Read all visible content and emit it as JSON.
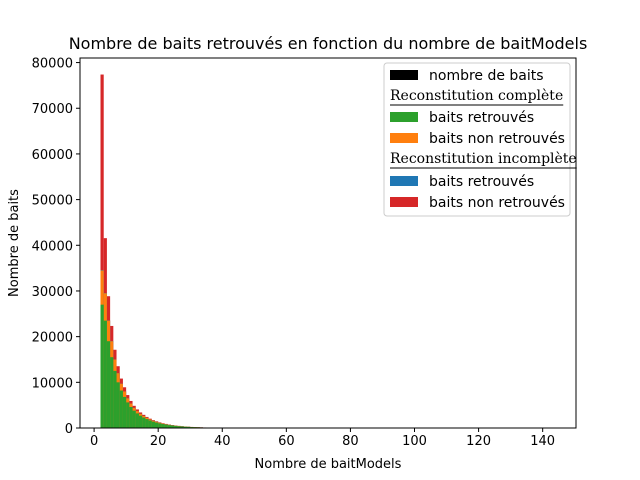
{
  "chart_data": {
    "type": "bar",
    "title": "Nombre de baits retrouvés en fonction du nombre de baitModels",
    "xlabel": "Nombre de baitModels",
    "ylabel": "Nombre de baits",
    "xlim": [
      -4.4,
      150.4
    ],
    "ylim": [
      0,
      81000
    ],
    "x_ticks": [
      0,
      20,
      40,
      60,
      80,
      100,
      120,
      140
    ],
    "y_ticks": [
      0,
      10000,
      20000,
      30000,
      40000,
      50000,
      60000,
      70000,
      80000
    ],
    "x_tick_labels": [
      "0",
      "20",
      "40",
      "60",
      "80",
      "100",
      "120",
      "140"
    ],
    "y_tick_labels": [
      "0",
      "10000",
      "20000",
      "30000",
      "40000",
      "50000",
      "60000",
      "70000",
      "80000"
    ],
    "bin_width": 1,
    "stacking": "cumulative, each layer drawn from 0 behind later layers",
    "x": [
      2,
      3,
      4,
      5,
      6,
      7,
      8,
      9,
      10,
      11,
      12,
      13,
      14,
      15,
      16,
      17,
      18,
      19,
      20,
      21,
      22,
      23,
      24,
      25,
      26,
      27,
      28,
      29,
      30,
      31,
      32,
      33,
      34,
      35,
      36,
      37,
      38,
      39,
      40,
      41,
      42,
      43
    ],
    "series": [
      {
        "name": "baits retrouvés",
        "group": "Reconstitution complète",
        "color": "#2ca02c",
        "values": [
          27000,
          23500,
          19000,
          15500,
          12500,
          10000,
          8200,
          6800,
          5600,
          4600,
          3800,
          3200,
          2700,
          2300,
          1950,
          1650,
          1400,
          1200,
          1020,
          870,
          740,
          630,
          540,
          460,
          390,
          330,
          280,
          240,
          200,
          170,
          145,
          120,
          100,
          85,
          70,
          60,
          50,
          42,
          35,
          28,
          22,
          16
        ]
      },
      {
        "name": "baits non retrouvés",
        "group": "Reconstitution complète",
        "color": "#ff7f0e",
        "values": [
          7500,
          6000,
          4500,
          3500,
          2500,
          2000,
          1500,
          1200,
          900,
          750,
          600,
          500,
          400,
          330,
          270,
          220,
          180,
          150,
          120,
          100,
          85,
          70,
          58,
          48,
          40,
          33,
          27,
          22,
          18,
          15,
          12,
          10,
          8,
          7,
          6,
          5,
          4,
          3,
          3,
          2,
          2,
          1
        ]
      },
      {
        "name": "baits retrouvés",
        "group": "Reconstitution incomplète",
        "color": "#1f77b4",
        "values": [
          80,
          60,
          50,
          40,
          30,
          25,
          20,
          15,
          12,
          10,
          8,
          6,
          5,
          4,
          3,
          3,
          2,
          2,
          2,
          1,
          1,
          1,
          1,
          1,
          1,
          0,
          0,
          0,
          0,
          0,
          0,
          0,
          0,
          0,
          0,
          0,
          0,
          0,
          0,
          0,
          0,
          0
        ]
      },
      {
        "name": "baits non retrouvés",
        "group": "Reconstitution incomplète",
        "color": "#d62728",
        "values": [
          42800,
          12000,
          5300,
          3300,
          2100,
          1500,
          1100,
          900,
          700,
          560,
          450,
          360,
          300,
          250,
          200,
          170,
          140,
          120,
          100,
          80,
          70,
          60,
          50,
          40,
          35,
          30,
          25,
          20,
          17,
          14,
          12,
          10,
          8,
          7,
          6,
          5,
          4,
          3,
          3,
          2,
          2,
          2
        ]
      }
    ],
    "legend": {
      "placement": "top-right",
      "entries": [
        {
          "kind": "swatch",
          "label": "nombre de baits",
          "color": "#000000"
        },
        {
          "kind": "header",
          "label": "Reconstitution  complète"
        },
        {
          "kind": "swatch",
          "label": "baits retrouvés",
          "color": "#2ca02c"
        },
        {
          "kind": "swatch",
          "label": "baits non retrouvés",
          "color": "#ff7f0e"
        },
        {
          "kind": "header",
          "label": "Reconstitution  incomplète"
        },
        {
          "kind": "swatch",
          "label": "baits retrouvés",
          "color": "#1f77b4"
        },
        {
          "kind": "swatch",
          "label": "baits non retrouvés",
          "color": "#d62728"
        }
      ]
    },
    "grid": false
  }
}
